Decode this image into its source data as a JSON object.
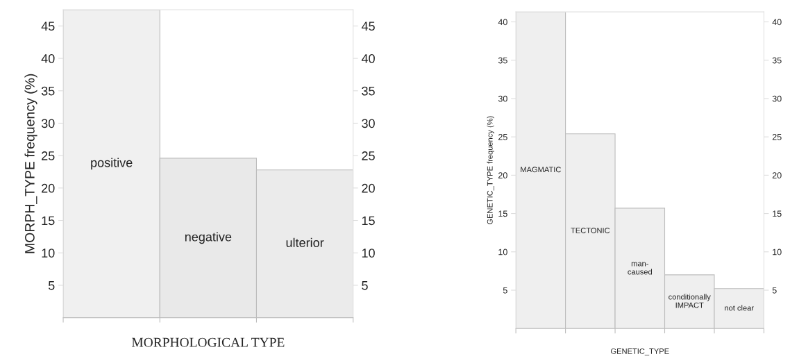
{
  "chart_data": [
    {
      "type": "bar",
      "xlabel": "MORPHOLOGICAL TYPE",
      "ylabel": "MORPH_TYPE frequency (%)",
      "categories": [
        "positive",
        "negative",
        "ulterior"
      ],
      "values": [
        47.5,
        24.6,
        22.8
      ],
      "colors": [
        "#f0f0f0",
        "#e9e9e9",
        "#ebebeb"
      ],
      "ylim": [
        0,
        47.5
      ],
      "yticks": [
        5,
        10,
        15,
        20,
        25,
        30,
        35,
        40,
        45
      ],
      "y2lim": [
        0,
        47.5
      ],
      "y2ticks": [
        5,
        10,
        15,
        20,
        25,
        30,
        35,
        40,
        45
      ],
      "grid": false,
      "legend": false
    },
    {
      "type": "bar",
      "xlabel": "GENETIC_TYPE",
      "ylabel": "GENETIC_TYPE frequency (%)",
      "categories": [
        "MAGMATIC",
        "TECTONIC",
        "man-\ncaused",
        "conditionally\nIMPACT",
        "not clear"
      ],
      "values": [
        41.3,
        25.4,
        15.7,
        7.0,
        5.2
      ],
      "colors": [
        "#efefef",
        "#efefef",
        "#efefef",
        "#efefef",
        "#efefef"
      ],
      "ylim": [
        0,
        41.3
      ],
      "yticks": [
        5,
        10,
        15,
        20,
        25,
        30,
        35,
        40
      ],
      "y2lim": [
        0,
        41.3
      ],
      "y2ticks": [
        5,
        10,
        15,
        20,
        25,
        30,
        35,
        40
      ],
      "grid": false,
      "legend": false
    }
  ]
}
